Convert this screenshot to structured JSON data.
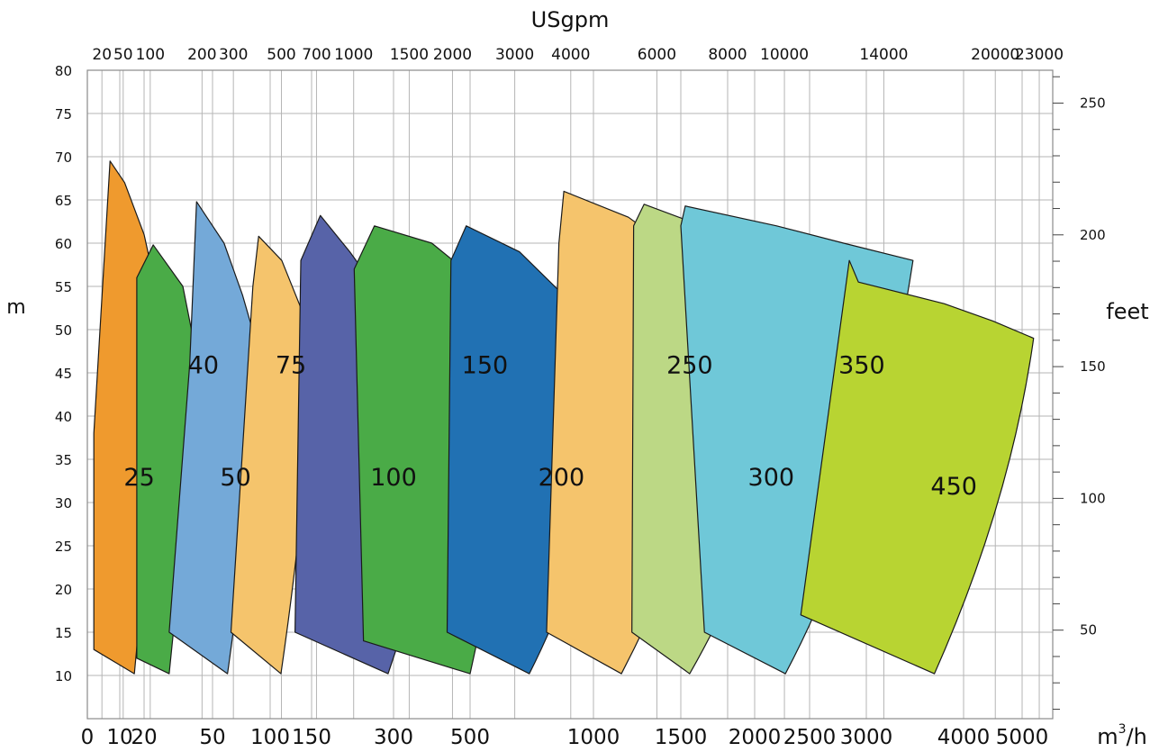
{
  "chart_data": {
    "type": "area",
    "x_bottom": {
      "unit_base": "m",
      "unit_sup": "3",
      "unit_tail": "/h",
      "ticks": [
        {
          "label": "0",
          "value": 0
        },
        {
          "label": "10",
          "value": 10
        },
        {
          "label": "20",
          "value": 20
        },
        {
          "label": "50",
          "value": 50
        },
        {
          "label": "100",
          "value": 100
        },
        {
          "label": "150",
          "value": 150
        },
        {
          "label": "300",
          "value": 300
        },
        {
          "label": "500",
          "value": 500
        },
        {
          "label": "1000",
          "value": 1000
        },
        {
          "label": "1500",
          "value": 1500
        },
        {
          "label": "2000",
          "value": 2000
        },
        {
          "label": "2500",
          "value": 2500
        },
        {
          "label": "3000",
          "value": 3000
        },
        {
          "label": "4000",
          "value": 4000
        },
        {
          "label": "5000",
          "value": 5000
        }
      ]
    },
    "x_top": {
      "title": "USgpm",
      "ticks": [
        {
          "label": "20",
          "value": 4.5
        },
        {
          "label": "50",
          "value": 11.4
        },
        {
          "label": "100",
          "value": 22.7
        },
        {
          "label": "200",
          "value": 45.4
        },
        {
          "label": "300",
          "value": 68.1
        },
        {
          "label": "500",
          "value": 113.6
        },
        {
          "label": "700",
          "value": 159
        },
        {
          "label": "1000",
          "value": 227
        },
        {
          "label": "1500",
          "value": 341
        },
        {
          "label": "2000",
          "value": 454
        },
        {
          "label": "3000",
          "value": 681
        },
        {
          "label": "4000",
          "value": 908
        },
        {
          "label": "6000",
          "value": 1363
        },
        {
          "label": "8000",
          "value": 1817
        },
        {
          "label": "10000",
          "value": 2271
        },
        {
          "label": "14000",
          "value": 3180
        },
        {
          "label": "20000",
          "value": 4542
        },
        {
          "label": "23000",
          "value": 5224
        }
      ]
    },
    "y_left": {
      "title": "m",
      "range": [
        5,
        80
      ],
      "ticks": [
        10,
        15,
        20,
        25,
        30,
        35,
        40,
        45,
        50,
        55,
        60,
        65,
        70,
        75,
        80
      ]
    },
    "y_right": {
      "title": "feet",
      "labeled_ticks": [
        50,
        100,
        150,
        200,
        250
      ]
    },
    "grid": true,
    "regions": [
      {
        "label": "25",
        "color": "#ef9a2e",
        "label_pos": [
          18,
          33
        ],
        "top": [
          [
            2,
            38
          ],
          [
            7,
            69.5
          ],
          [
            12,
            67
          ],
          [
            20,
            61
          ],
          [
            25,
            55
          ],
          [
            27,
            50
          ]
        ],
        "bottom": [
          [
            2,
            13
          ],
          [
            16,
            10.2
          ]
        ],
        "right_edge": [
          [
            27,
            50
          ],
          [
            23,
            30
          ],
          [
            16,
            10.2
          ]
        ]
      },
      {
        "label": "40",
        "color": "#4aab47",
        "label_pos": [
          46,
          46
        ],
        "top": [
          [
            17,
            56
          ],
          [
            24,
            59.8
          ],
          [
            37,
            55
          ],
          [
            43,
            47
          ]
        ],
        "bottom": [
          [
            17,
            12
          ],
          [
            31,
            10.2
          ]
        ],
        "right_edge": [
          [
            43,
            47
          ],
          [
            38,
            28
          ],
          [
            31,
            10.2
          ]
        ]
      },
      {
        "label": "50",
        "color": "#74a9d8",
        "label_pos": [
          70,
          33
        ],
        "top": [
          [
            40,
            46
          ],
          [
            43,
            64.8
          ],
          [
            60,
            60
          ],
          [
            76,
            54
          ],
          [
            89,
            48
          ]
        ],
        "bottom": [
          [
            31,
            15
          ],
          [
            63,
            10.2
          ]
        ],
        "right_edge": [
          [
            89,
            48
          ],
          [
            82,
            28
          ],
          [
            63,
            10.2
          ]
        ]
      },
      {
        "label": "75",
        "color": "#f5c46c",
        "label_pos": [
          125,
          46
        ],
        "top": [
          [
            85,
            55
          ],
          [
            90,
            60.8
          ],
          [
            114,
            58
          ],
          [
            135,
            53
          ],
          [
            158,
            48
          ]
        ],
        "bottom": [
          [
            66,
            15
          ],
          [
            113,
            10.2
          ]
        ],
        "right_edge": [
          [
            158,
            48
          ],
          [
            140,
            28
          ],
          [
            113,
            10.2
          ]
        ]
      },
      {
        "label": "100",
        "color": "#5763a8",
        "label_pos": [
          300,
          33
        ],
        "top": [
          [
            137,
            58
          ],
          [
            166,
            63.2
          ],
          [
            220,
            59
          ],
          [
            300,
            52
          ],
          [
            480,
            43
          ]
        ],
        "bottom": [
          [
            130,
            15
          ],
          [
            290,
            10.2
          ]
        ],
        "right_edge": [
          [
            480,
            43
          ],
          [
            400,
            25
          ],
          [
            290,
            10.2
          ]
        ]
      },
      {
        "label": "150",
        "color": "#4aab47",
        "label_pos": [
          560,
          46
        ],
        "top": [
          [
            228,
            57
          ],
          [
            265,
            62
          ],
          [
            400,
            60
          ],
          [
            560,
            55
          ],
          [
            710,
            50
          ]
        ],
        "bottom": [
          [
            245,
            14
          ],
          [
            500,
            10.2
          ]
        ],
        "right_edge": [
          [
            710,
            50
          ],
          [
            640,
            28
          ],
          [
            500,
            10.2
          ]
        ]
      },
      {
        "label": "200",
        "color": "#2171b3",
        "label_pos": [
          870,
          33
        ],
        "top": [
          [
            450,
            58
          ],
          [
            490,
            62
          ],
          [
            700,
            59
          ],
          [
            950,
            52
          ],
          [
            1180,
            51.5
          ]
        ],
        "bottom": [
          [
            440,
            15
          ],
          [
            740,
            10.2
          ]
        ],
        "right_edge": [
          [
            1180,
            51.5
          ],
          [
            1080,
            28
          ],
          [
            740,
            10.2
          ]
        ]
      },
      {
        "label": "250",
        "color": "#f5c46c",
        "label_pos": [
          1560,
          46
        ],
        "top": [
          [
            860,
            60
          ],
          [
            880,
            66
          ],
          [
            1200,
            63
          ],
          [
            1550,
            58
          ],
          [
            1980,
            53
          ]
        ],
        "bottom": [
          [
            810,
            15
          ],
          [
            1160,
            10.2
          ]
        ],
        "right_edge": [
          [
            1980,
            53
          ],
          [
            1700,
            30
          ],
          [
            1160,
            10.2
          ]
        ]
      },
      {
        "label": "300",
        "color": "#bcd885",
        "label_pos": [
          2150,
          33
        ],
        "top": [
          [
            1230,
            62
          ],
          [
            1290,
            64.5
          ],
          [
            1800,
            61
          ],
          [
            2200,
            58
          ],
          [
            2630,
            56
          ]
        ],
        "bottom": [
          [
            1220,
            15
          ],
          [
            1560,
            10.2
          ]
        ],
        "right_edge": [
          [
            2630,
            56
          ],
          [
            2300,
            30
          ],
          [
            1560,
            10.2
          ]
        ]
      },
      {
        "label": "350",
        "color": "#6fc8d8",
        "label_pos": [
          2960,
          46
        ],
        "top": [
          [
            1500,
            62
          ],
          [
            1530,
            64.3
          ],
          [
            2200,
            62
          ],
          [
            2800,
            60
          ],
          [
            3480,
            58
          ]
        ],
        "bottom": [
          [
            1660,
            15
          ],
          [
            2280,
            10.2
          ]
        ],
        "right_edge": [
          [
            3480,
            58
          ],
          [
            3100,
            30
          ],
          [
            2280,
            10.2
          ]
        ]
      },
      {
        "label": "450",
        "color": "#b8d432",
        "label_pos": [
          3900,
          32
        ],
        "top": [
          [
            2850,
            58
          ],
          [
            2930,
            55.5
          ],
          [
            3800,
            53
          ],
          [
            4500,
            51
          ],
          [
            5150,
            49
          ]
        ],
        "bottom": [
          [
            2420,
            17
          ],
          [
            3700,
            10.2
          ]
        ],
        "right_edge": [
          [
            5150,
            49
          ],
          [
            4800,
            30
          ],
          [
            3700,
            10.2
          ]
        ]
      }
    ]
  }
}
